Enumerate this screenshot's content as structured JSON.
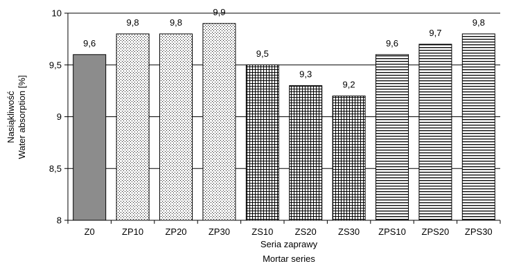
{
  "chart_data": {
    "type": "bar",
    "categories": [
      "Z0",
      "ZP10",
      "ZP20",
      "ZP30",
      "ZS10",
      "ZS20",
      "ZS30",
      "ZPS10",
      "ZPS20",
      "ZPS30"
    ],
    "values": [
      9.6,
      9.8,
      9.8,
      9.9,
      9.5,
      9.3,
      9.2,
      9.6,
      9.7,
      9.8
    ],
    "value_labels": [
      "9,6",
      "9,8",
      "9,8",
      "9,9",
      "9,5",
      "9,3",
      "9,2",
      "9,6",
      "9,7",
      "9,8"
    ],
    "patterns": [
      "solid",
      "dots",
      "dots",
      "dots",
      "grid",
      "grid",
      "grid",
      "hlines",
      "hlines",
      "hlines"
    ],
    "ylim": [
      8,
      10
    ],
    "yticks": [
      8,
      8.5,
      9,
      9.5,
      10
    ],
    "ytick_labels": [
      "8",
      "8,5",
      "9",
      "9,5",
      "10"
    ],
    "ylabel_lines": [
      "Nasiąkliwość",
      "Water absorption [%]"
    ],
    "xlabel_lines": [
      "Seria zaprawy",
      "Mortar series"
    ],
    "grid": true,
    "colors": {
      "solid": "#8c8c8c",
      "pattern": "#000000",
      "background": "#ffffff"
    }
  }
}
